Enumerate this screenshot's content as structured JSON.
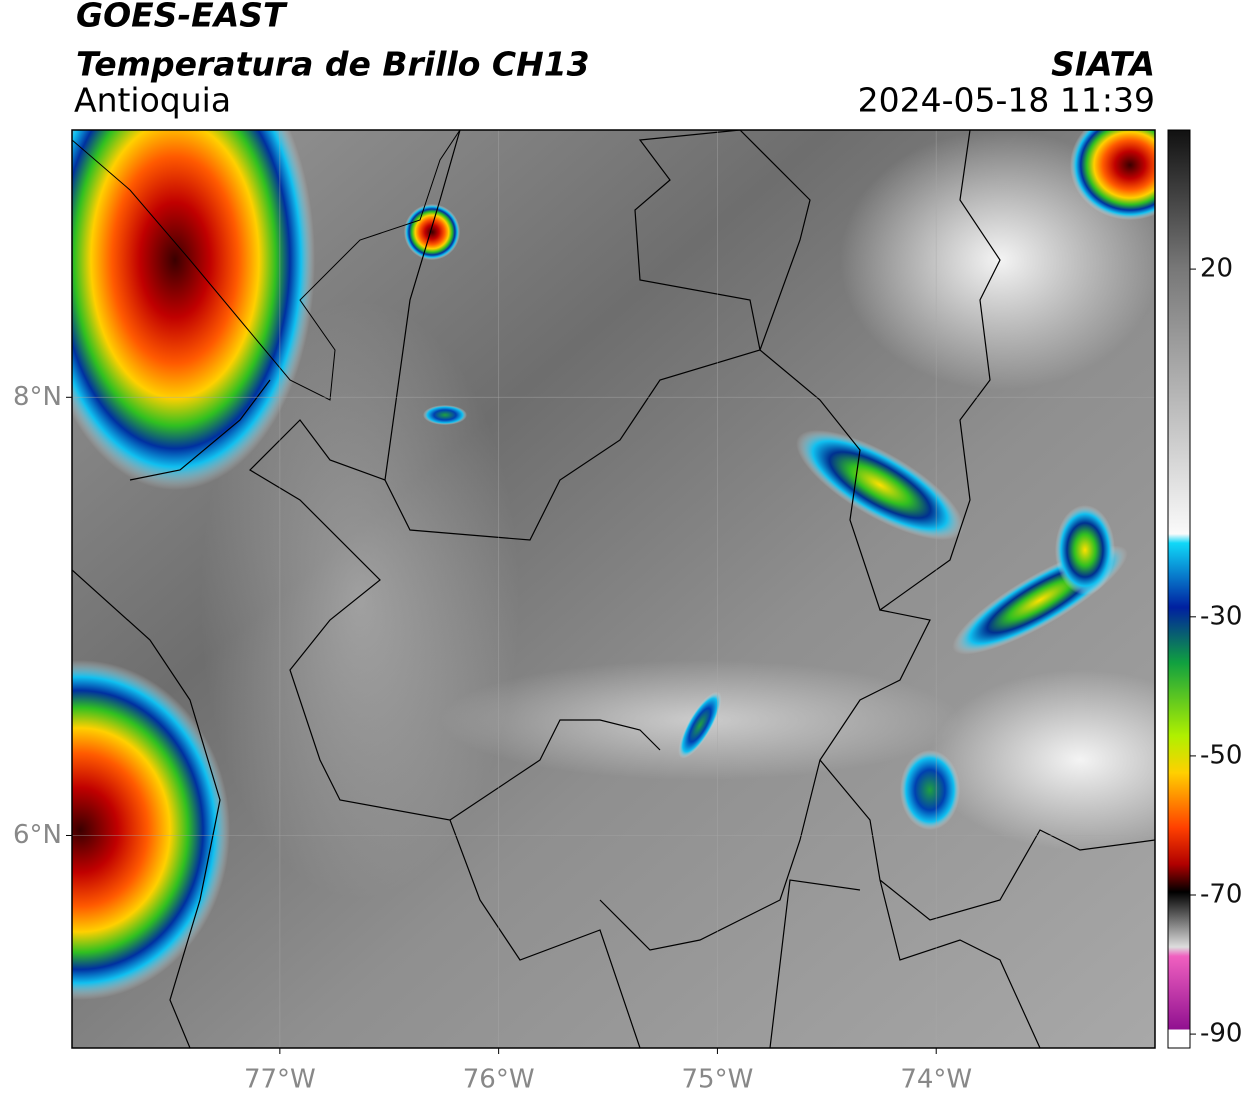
{
  "header": {
    "title": "GOES-EAST",
    "subtitle": "Temperatura de Brillo CH13",
    "region": "Antioquia",
    "source": "SIATA",
    "datetime": "2024-05-18 11:39"
  },
  "map": {
    "xlim": [
      -77.95,
      -73
    ],
    "ylim": [
      5.03,
      9.22
    ],
    "xticks": [
      {
        "value": -77,
        "label": "77°W"
      },
      {
        "value": -76,
        "label": "76°W"
      },
      {
        "value": -75,
        "label": "75°W"
      },
      {
        "value": -74,
        "label": "74°W"
      }
    ],
    "yticks": [
      {
        "value": 8,
        "label": "8°N"
      },
      {
        "value": 6,
        "label": "6°N"
      }
    ],
    "grid": true
  },
  "colorbar": {
    "lim": [
      -92,
      40
    ],
    "ticks": [
      20,
      -30,
      -50,
      -70,
      -90
    ]
  }
}
